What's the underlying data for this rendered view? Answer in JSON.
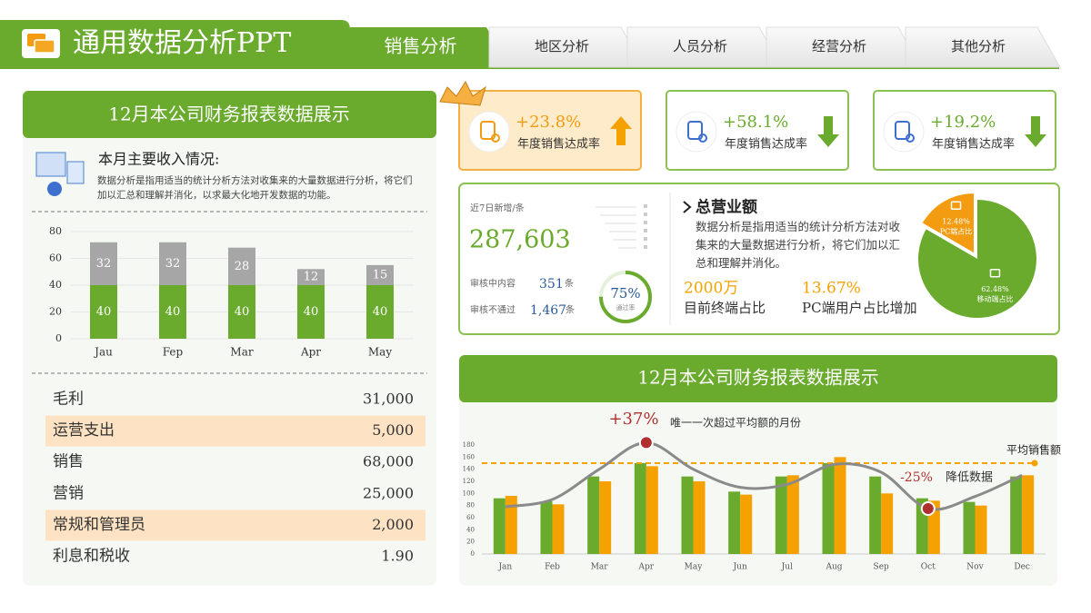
{
  "header": {
    "title": "通用数据分析PPT",
    "tabs": [
      "销售分析",
      "地区分析",
      "人员分析",
      "经营分析",
      "其他分析"
    ]
  },
  "income": {
    "title": "12月本公司财务报表数据展示",
    "subtitle": "本月主要收入情况:",
    "text": "数据分析是指用适当的统计分析方法对收集来的大量数据进行分析，将它们加以汇总和理解并消化，以求最大化地开发数据的功能。"
  },
  "table": {
    "rows": [
      [
        "毛利",
        "31,000"
      ],
      [
        "运营支出",
        "5,000"
      ],
      [
        "销售",
        "68,000"
      ],
      [
        "营销",
        "25,000"
      ],
      [
        "常规和管理员",
        "2,000"
      ],
      [
        "利息和税收",
        "1.90"
      ]
    ]
  },
  "kpis": [
    {
      "value": "+23.8%",
      "label": "年度销售达成率",
      "trend": "up"
    },
    {
      "value": "+58.1%",
      "label": "年度销售达成率",
      "trend": "down"
    },
    {
      "value": "+19.2%",
      "label": "年度销售达成率",
      "trend": "down"
    }
  ],
  "stats": {
    "new_label": "近7日新增/条",
    "new_value": "287,603",
    "rows": [
      {
        "label": "审核中内容",
        "value": "351",
        "unit": "条"
      },
      {
        "label": "审核不通过",
        "value": "1,467",
        "unit": "条"
      }
    ],
    "gauge": {
      "value": 75,
      "label": "75%",
      "caption": "通过率"
    }
  },
  "summary": {
    "title": "总营业额",
    "text": "数据分析是指用适当的统计分析方法对收集来的大量数据进行分析，将它们加以汇总和理解并消化。",
    "items": [
      {
        "value": "2000万",
        "label": "目前终端占比"
      },
      {
        "value": "13.67%",
        "label": "PC端用户占比增加"
      }
    ]
  },
  "chart_data": [
    {
      "type": "stacked-bar",
      "categories": [
        "Jau",
        "Fep",
        "Mar",
        "Apr",
        "May"
      ],
      "series": [
        {
          "color": "#6aab2e",
          "values": [
            40,
            40,
            40,
            40,
            40
          ]
        },
        {
          "color": "#a6a6a6",
          "values": [
            32,
            32,
            28,
            12,
            15
          ]
        }
      ],
      "ylim": [
        0,
        80
      ],
      "yticks": [
        0,
        20,
        40,
        60,
        80
      ],
      "grid": true
    },
    {
      "type": "pie",
      "categories": [
        "PC端占比",
        "移动端占比"
      ],
      "values": [
        12.48,
        62.48
      ],
      "value_labels": [
        "12.48%",
        "62.48%"
      ],
      "colors": [
        "#f39c12",
        "#6aab2e"
      ]
    },
    {
      "type": "bar-line",
      "title": "12月本公司财务报表数据展示",
      "categories": [
        "Jan",
        "Feb",
        "Mar",
        "Apr",
        "May",
        "Jun",
        "Jul",
        "Aug",
        "Sep",
        "Oct",
        "Nov",
        "Dec"
      ],
      "series": [
        {
          "type": "bar",
          "color": "#6aab2e",
          "values": [
            92,
            87,
            128,
            150,
            128,
            103,
            128,
            150,
            128,
            92,
            86,
            128
          ]
        },
        {
          "type": "bar",
          "color": "#f5a100",
          "values": [
            96,
            82,
            120,
            145,
            120,
            98,
            130,
            160,
            100,
            88,
            80,
            130
          ]
        },
        {
          "type": "line",
          "color": "#8a8a8a",
          "values": [
            78,
            90,
            140,
            184,
            140,
            110,
            115,
            148,
            135,
            75,
            95,
            130
          ]
        }
      ],
      "ylim": [
        0,
        180
      ],
      "yticks": [
        0,
        20,
        40,
        60,
        80,
        100,
        120,
        140,
        160,
        180
      ],
      "reference_line": {
        "value": 150,
        "label": "平均销售额",
        "color": "#f5a100"
      },
      "annotations": [
        {
          "text": "+37%",
          "note": "唯一一次超过平均额的月份"
        },
        {
          "text": "-25%",
          "note": "降低数据"
        }
      ]
    }
  ]
}
